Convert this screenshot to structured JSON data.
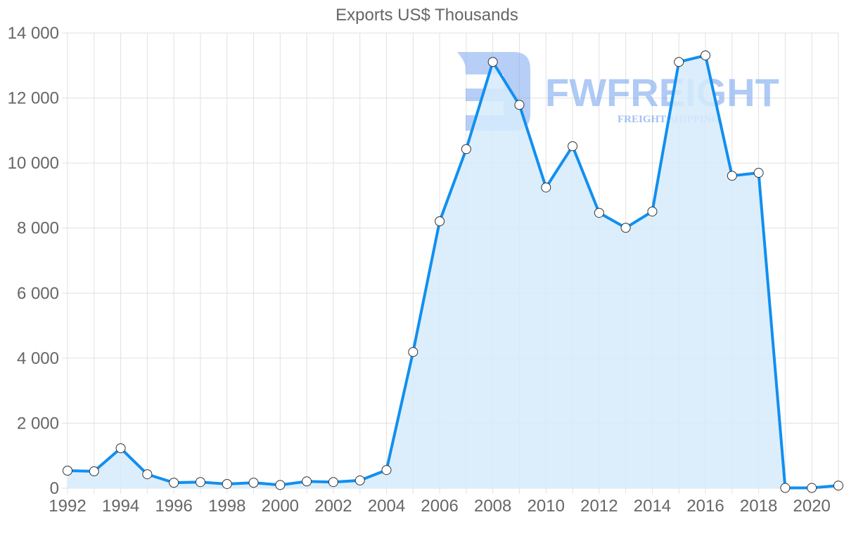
{
  "chart_data": {
    "type": "area",
    "title": "Exports US$ Thousands",
    "xlabel": "",
    "ylabel": "",
    "ylim": [
      0,
      14000
    ],
    "y_ticks": [
      0,
      2000,
      4000,
      6000,
      8000,
      10000,
      12000,
      14000
    ],
    "y_tick_labels": [
      "0",
      "2 000",
      "4 000",
      "6 000",
      "8 000",
      "10 000",
      "12 000",
      "14 000"
    ],
    "x_tick_labels": [
      "1992",
      "1994",
      "1996",
      "1998",
      "2000",
      "2002",
      "2004",
      "2006",
      "2008",
      "2010",
      "2012",
      "2014",
      "2016",
      "2018",
      "2020"
    ],
    "grid": true,
    "legend": "none",
    "x": [
      1992,
      1993,
      1994,
      1995,
      1996,
      1997,
      1998,
      1999,
      2000,
      2001,
      2002,
      2003,
      2004,
      2005,
      2006,
      2007,
      2008,
      2009,
      2010,
      2011,
      2012,
      2013,
      2014,
      2015,
      2016,
      2017,
      2018,
      2019,
      2020,
      2021
    ],
    "series": [
      {
        "name": "Exports US$ Thousands",
        "values": [
          540,
          520,
          1230,
          430,
          170,
          190,
          130,
          170,
          100,
          210,
          190,
          240,
          560,
          4190,
          8210,
          10430,
          13110,
          11790,
          9250,
          10520,
          8470,
          8010,
          8510,
          13110,
          13310,
          9610,
          9700,
          10,
          10,
          80
        ]
      }
    ],
    "colors": {
      "line": "#118ff0",
      "fill": "#d6ebfc",
      "point_fill": "#ffffff",
      "point_stroke": "#333333",
      "grid": "#e1e1e1",
      "text": "#666666"
    }
  },
  "watermark": {
    "brand": "FWFREIGHT",
    "tagline": "FREIGHT SHIPPING",
    "color": "#7ba7ef"
  }
}
